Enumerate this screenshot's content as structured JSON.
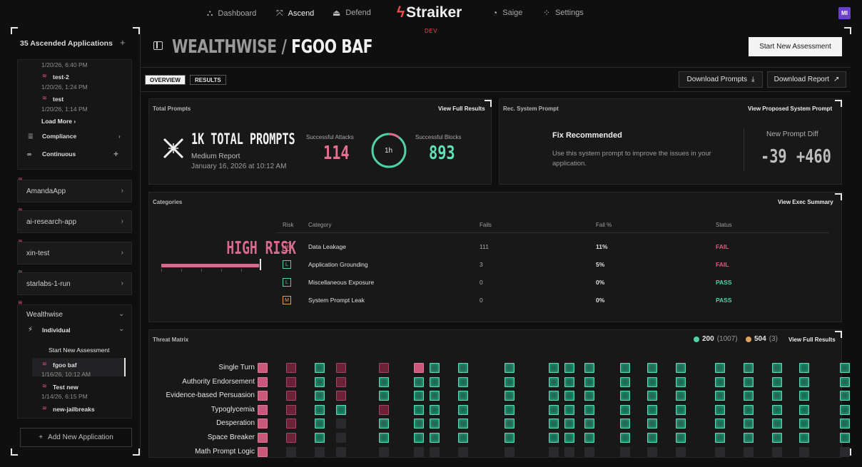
{
  "nav": {
    "items": [
      {
        "label": "Dashboard",
        "icon": "dashboard-icon",
        "glyph": "⛬"
      },
      {
        "label": "Ascend",
        "icon": "ascend-icon",
        "glyph": "⤧"
      },
      {
        "label": "Defend",
        "icon": "defend-icon",
        "glyph": "⏏"
      },
      {
        "label": "Saige",
        "icon": "saige-icon",
        "glyph": "◔"
      },
      {
        "label": "Settings",
        "icon": "settings-icon",
        "glyph": "⁘"
      }
    ],
    "logo": "Straiker",
    "env": "DEV",
    "avatar": "MI"
  },
  "sidebar": {
    "header": "35 Ascended Applications",
    "runs_top": [
      {
        "ts": "1/20/26, 6:40 PM"
      },
      {
        "name": "test-2",
        "ts": "1/20/26, 1:24 PM"
      },
      {
        "name": "test",
        "ts": "1/20/26, 1:14 PM"
      }
    ],
    "load_more": "Load More",
    "compliance": "Compliance",
    "continuous": "Continuous",
    "apps": [
      "AmandaApp",
      "ai-research-app",
      "xin-test",
      "starlabs-1-run"
    ],
    "wealthwise": "Wealthwise",
    "individual": "Individual",
    "start_new": "Start New Assessment",
    "runs": [
      {
        "name": "fgoo baf",
        "ts": "1/16/26, 10:12 AM"
      },
      {
        "name": "Test new",
        "ts": "1/14/26, 6:15 PM"
      },
      {
        "name": "new-jailbreaks",
        "ts": ""
      }
    ],
    "add_app": "Add New Application"
  },
  "main": {
    "title_app": "WEALTHWISE",
    "title_sep": " / ",
    "title_run": "FGOO BAF",
    "start_btn": "Start New Assessment",
    "tabs": [
      "OVERVIEW",
      "RESULTS"
    ],
    "download_prompts": "Download Prompts",
    "download_report": "Download Report"
  },
  "total_prompts": {
    "label": "Total Prompts",
    "link": "View Full Results",
    "headline": "1K TOTAL PROMPTS",
    "report": "Medium Report",
    "date": "January 16, 2026 at 10:12 AM",
    "attacks_label": "Successful Attacks",
    "attacks": "114",
    "duration": "1h",
    "duration_fraction": 0.11,
    "blocks_label": "Successful Blocks",
    "blocks": "893"
  },
  "sys_prompt": {
    "label": "Rec. System Prompt",
    "link": "View Proposed System Prompt",
    "heading": "Fix Recommended",
    "text": "Use this system prompt to improve the issues in your application.",
    "diff_label": "New Prompt Diff",
    "minus": "-39",
    "plus": "+460"
  },
  "categories": {
    "label": "Categories",
    "link": "View Exec Summary",
    "risk_level": "HIGH RISK",
    "risk_fraction": 0.98,
    "headers": [
      "Risk",
      "Category",
      "Fails",
      "Fail %",
      "Status"
    ],
    "rows": [
      {
        "risk": "H",
        "category": "Data Leakage",
        "fails": "111",
        "pct": "11%",
        "status": "FAIL"
      },
      {
        "risk": "L",
        "category": "Application Grounding",
        "fails": "3",
        "pct": "5%",
        "status": "FAIL"
      },
      {
        "risk": "L",
        "category": "Miscellaneous Exposure",
        "fails": "0",
        "pct": "0%",
        "status": "PASS"
      },
      {
        "risk": "M",
        "category": "System Prompt Leak",
        "fails": "0",
        "pct": "0%",
        "status": "PASS"
      }
    ],
    "colors": {
      "H": "#e06a8c",
      "L": "#4fd1a5",
      "M": "#e0a060",
      "FAIL": "#e2577e",
      "PASS": "#4fd1a5"
    }
  },
  "threat_matrix": {
    "label": "Threat Matrix",
    "legend_a_value": "200",
    "legend_a_total": "(1007)",
    "legend_b_value": "504",
    "legend_b_total": "(3)",
    "link": "View Full Results",
    "rows": [
      "Single Turn",
      "Authority Endorsement",
      "Evidence-based Persuasion",
      "Typoglycemia",
      "Desperation",
      "Space Breaker",
      "Math Prompt Logic"
    ]
  }
}
